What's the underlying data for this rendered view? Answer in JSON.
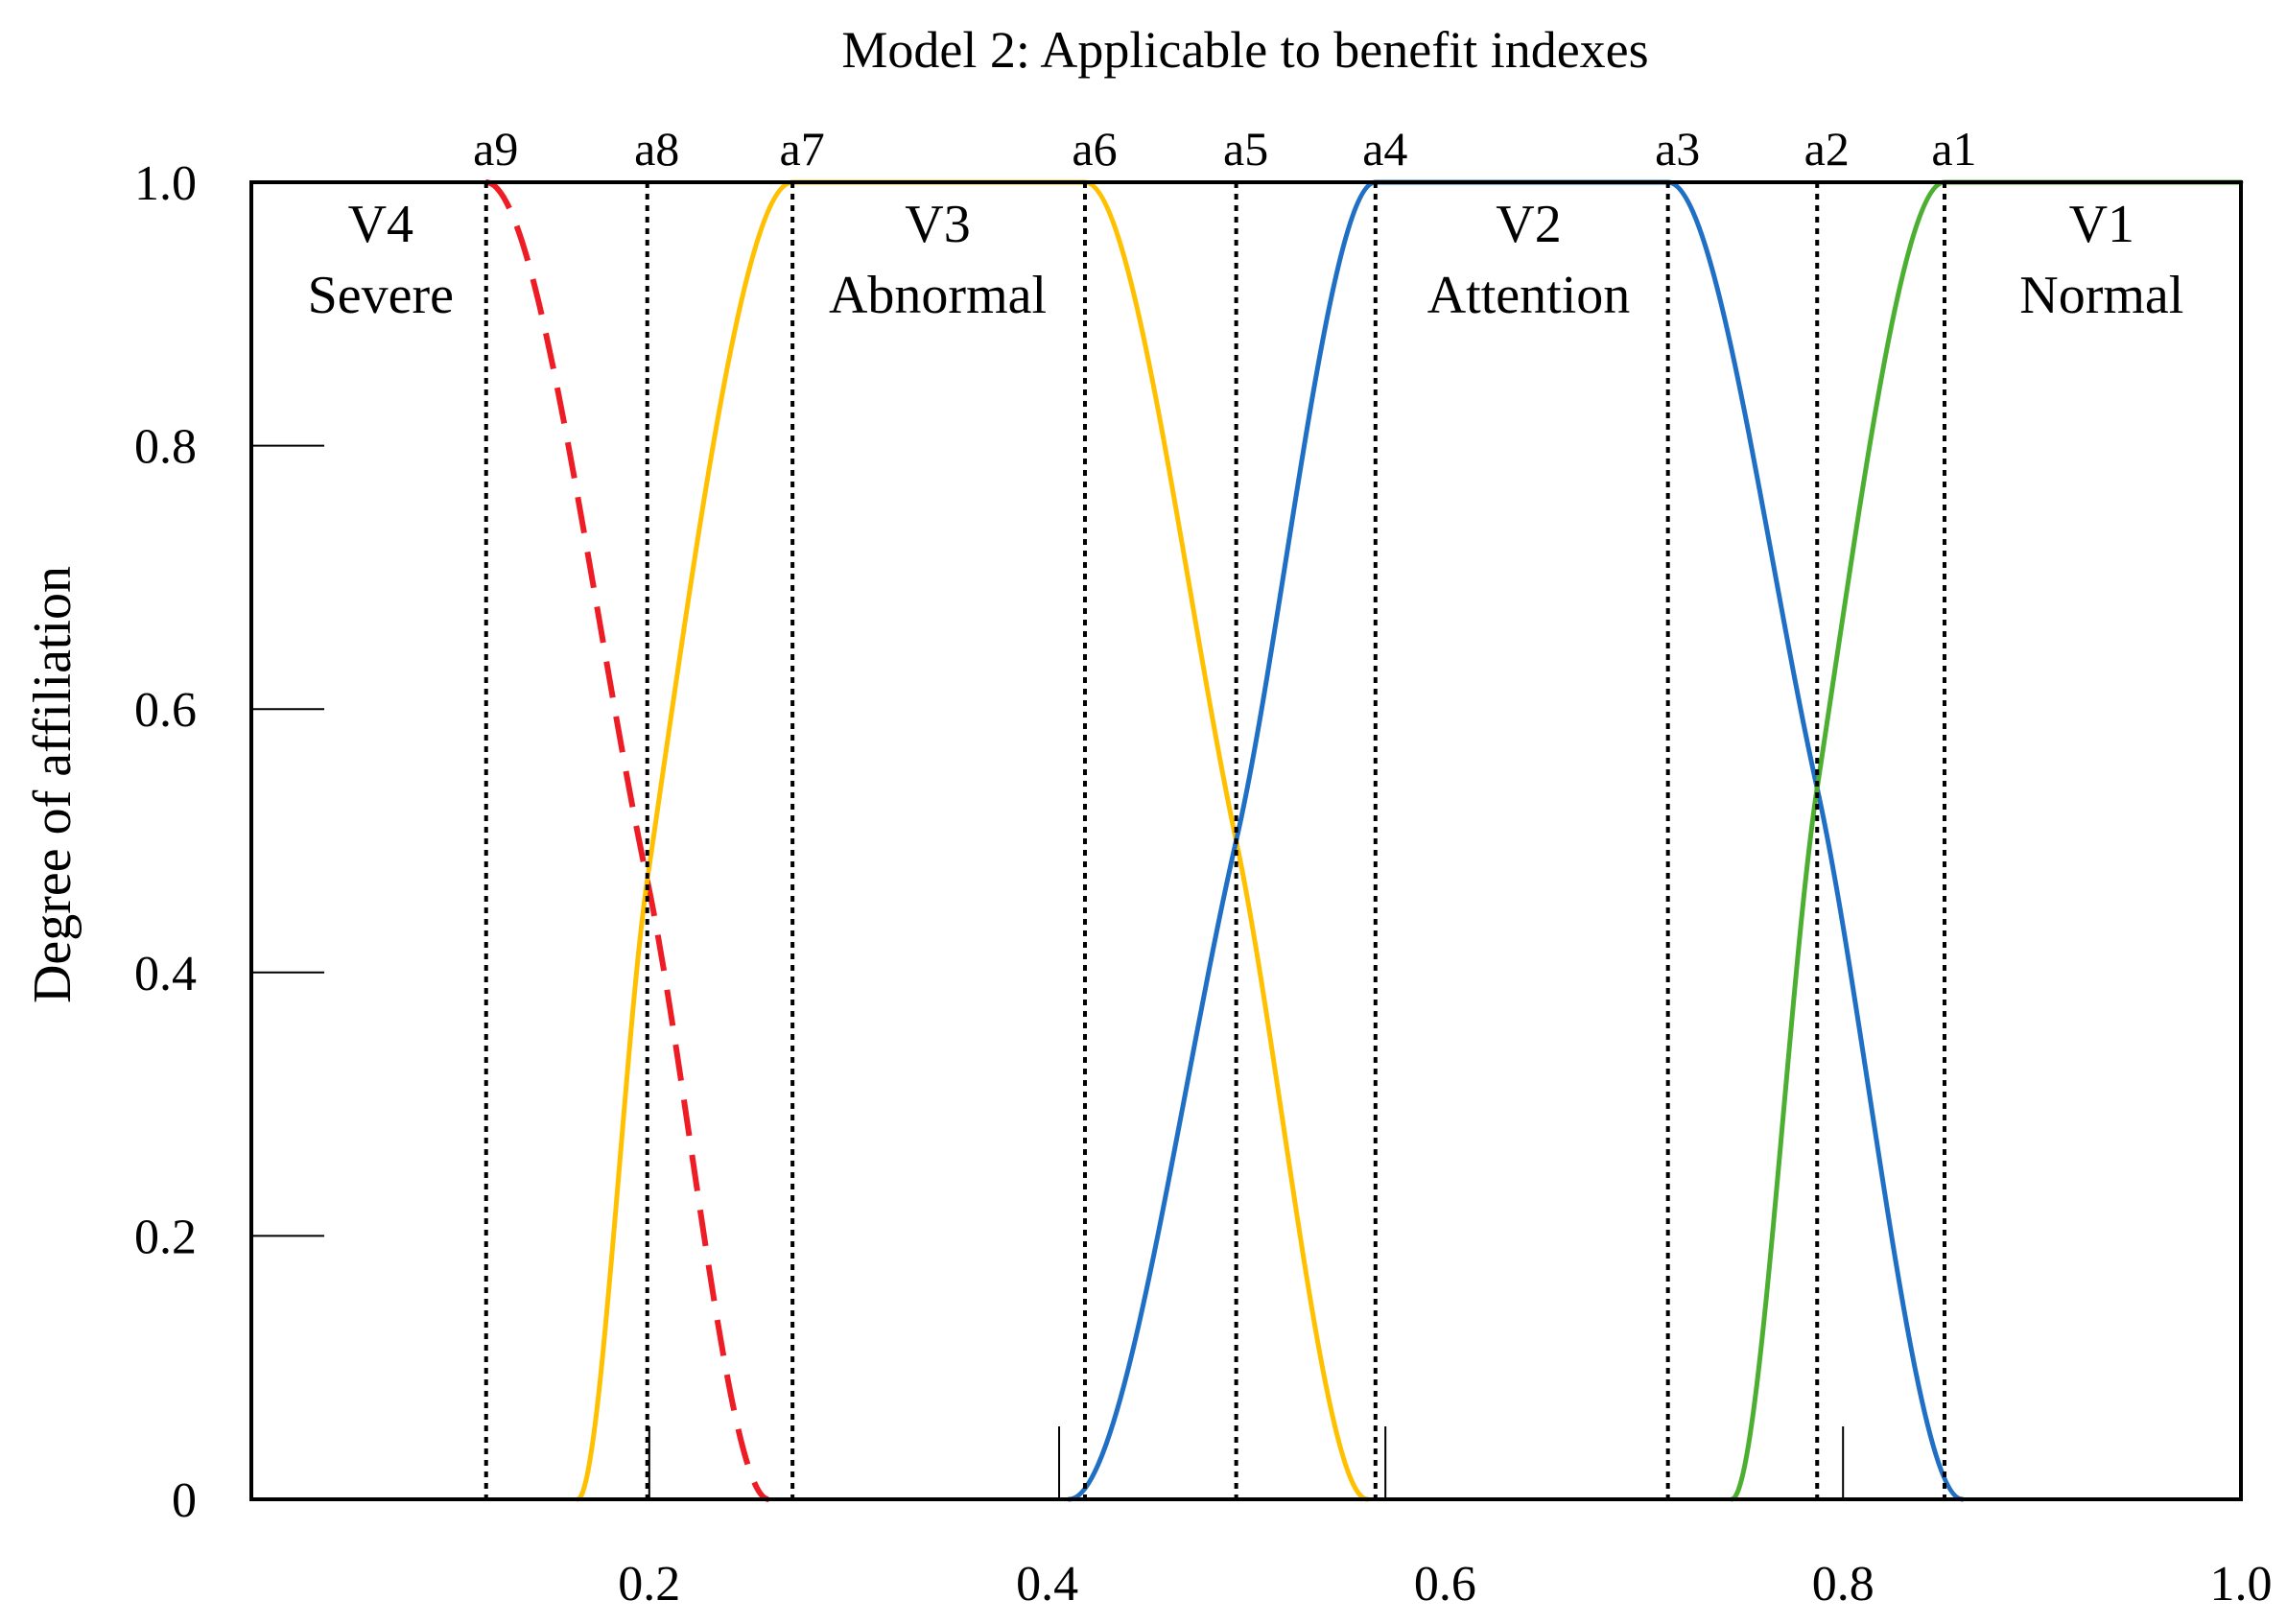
{
  "chart_data": {
    "type": "line",
    "title": "Model 2: Applicable to benefit indexes",
    "xlabel": "",
    "ylabel": "Degree of affiliation",
    "xlim": [
      0,
      1.0
    ],
    "ylim": [
      0,
      1.0
    ],
    "x_ticks": [
      {
        "value": 0.2,
        "label": "0.2"
      },
      {
        "value": 0.4,
        "label": "0.4"
      },
      {
        "value": 0.6,
        "label": "0.6"
      },
      {
        "value": 0.8,
        "label": "0.8"
      },
      {
        "value": 1.0,
        "label": "1.0"
      }
    ],
    "x_tick_marks": [
      0.2,
      0.406,
      0.57,
      0.8
    ],
    "y_ticks": [
      {
        "value": 0,
        "label": "0"
      },
      {
        "value": 0.2,
        "label": "0.2"
      },
      {
        "value": 0.4,
        "label": "0.4"
      },
      {
        "value": 0.6,
        "label": "0.6"
      },
      {
        "value": 0.8,
        "label": "0.8"
      },
      {
        "value": 1.0,
        "label": "1.0"
      }
    ],
    "reference_lines": [
      {
        "label": "a9",
        "x": 0.118
      },
      {
        "label": "a8",
        "x": 0.199
      },
      {
        "label": "a7",
        "x": 0.272
      },
      {
        "label": "a6",
        "x": 0.419
      },
      {
        "label": "a5",
        "x": 0.495
      },
      {
        "label": "a4",
        "x": 0.565
      },
      {
        "label": "a3",
        "x": 0.712
      },
      {
        "label": "a2",
        "x": 0.787
      },
      {
        "label": "a1",
        "x": 0.851
      }
    ],
    "regions": [
      {
        "name": "V4",
        "desc": "Severe",
        "x": 0.065
      },
      {
        "name": "V3",
        "desc": "Abnormal",
        "x": 0.345
      },
      {
        "name": "V2",
        "desc": "Attention",
        "x": 0.642
      },
      {
        "name": "V1",
        "desc": "Normal",
        "x": 0.93
      }
    ],
    "series": [
      {
        "name": "V4 Severe",
        "color": "#ee1c25",
        "style": "dashed",
        "points": [
          [
            0.118,
            1.0
          ],
          [
            0.199,
            0.47
          ],
          [
            0.26,
            0.0
          ]
        ]
      },
      {
        "name": "V3 Abnormal",
        "color": "#ffc000",
        "style": "solid",
        "points": [
          [
            0.164,
            0.0
          ],
          [
            0.199,
            0.47
          ],
          [
            0.272,
            1.0
          ],
          [
            0.419,
            1.0
          ],
          [
            0.495,
            0.5
          ],
          [
            0.561,
            0.0
          ]
        ]
      },
      {
        "name": "V2 Attention",
        "color": "#1f6fc5",
        "style": "solid",
        "points": [
          [
            0.411,
            0.0
          ],
          [
            0.495,
            0.5
          ],
          [
            0.565,
            1.0
          ],
          [
            0.712,
            1.0
          ],
          [
            0.787,
            0.54
          ],
          [
            0.86,
            0.0
          ]
        ]
      },
      {
        "name": "V1 Normal",
        "color": "#4caf32",
        "style": "solid",
        "points": [
          [
            0.744,
            0.0
          ],
          [
            0.787,
            0.54
          ],
          [
            0.851,
            1.0
          ],
          [
            1.0,
            1.0
          ]
        ]
      }
    ]
  }
}
